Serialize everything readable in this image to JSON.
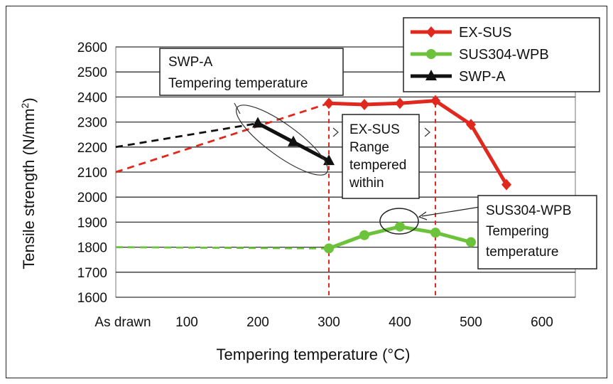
{
  "chart_data": {
    "type": "line",
    "xlabel": "Tempering temperature (°C)",
    "ylabel_main": "Tensile strength (N/mm",
    "ylabel_sup": "2",
    "ylabel_tail": ")",
    "ylim": [
      1600,
      2600
    ],
    "yticks": [
      1600,
      1700,
      1800,
      1900,
      2000,
      2100,
      2200,
      2300,
      2400,
      2500,
      2600
    ],
    "xlim": [
      0,
      600
    ],
    "xticks": [
      {
        "value": 0,
        "label": "As drawn"
      },
      {
        "value": 100,
        "label": "100"
      },
      {
        "value": 200,
        "label": "200"
      },
      {
        "value": 300,
        "label": "300"
      },
      {
        "value": 400,
        "label": "400"
      },
      {
        "value": 500,
        "label": "500"
      },
      {
        "value": 600,
        "label": "600"
      }
    ],
    "grid": "horizontal",
    "legend_position": "top-right",
    "series": [
      {
        "name": "EX-SUS",
        "color": "#e0281e",
        "marker": "diamond",
        "as_drawn": 2100,
        "points": [
          [
            300,
            2375
          ],
          [
            350,
            2370
          ],
          [
            400,
            2375
          ],
          [
            450,
            2385
          ],
          [
            500,
            2290
          ],
          [
            550,
            2050
          ]
        ]
      },
      {
        "name": "SUS304-WPB",
        "color": "#6cc23a",
        "marker": "circle",
        "as_drawn": 1800,
        "points": [
          [
            300,
            1795
          ],
          [
            350,
            1848
          ],
          [
            400,
            1882
          ],
          [
            450,
            1858
          ],
          [
            500,
            1820
          ]
        ]
      },
      {
        "name": "SWP-A",
        "color": "#111111",
        "marker": "triangle",
        "as_drawn": 2200,
        "points": [
          [
            200,
            2295
          ],
          [
            250,
            2220
          ],
          [
            300,
            2145
          ]
        ]
      }
    ],
    "range_lines": [
      300,
      450
    ],
    "annotations": {
      "swpa_box": [
        "SWP-A",
        "Tempering temperature"
      ],
      "exsus_box": [
        "EX-SUS",
        "Range",
        "tempered",
        "within"
      ],
      "sus_box": [
        "SUS304-WPB",
        "Tempering",
        "temperature"
      ]
    }
  }
}
